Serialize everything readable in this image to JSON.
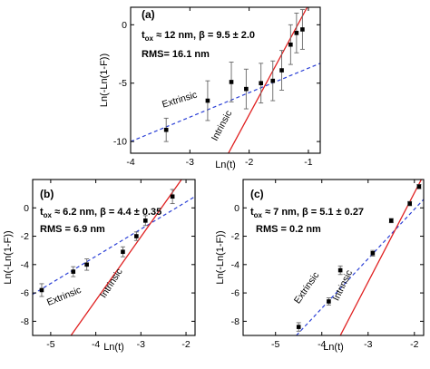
{
  "chart_data": [
    {
      "type": "scatter",
      "panel_label": "(a)",
      "info_line1_prefix": "t",
      "info_line1_sub": "ox",
      "info_line1_rest": " ≈ 12 nm, β = 9.5 ± 2.0",
      "info_line2": "RMS=  16.1 nm",
      "xlabel": "Ln(t)",
      "ylabel": "Ln(-Ln(1-F))",
      "xlim": [
        -4,
        -0.8
      ],
      "ylim": [
        -11,
        1.5
      ],
      "xticks": [
        "-4",
        "-3",
        "-2",
        "-1"
      ],
      "yticks": [
        "-10",
        "-5",
        "0"
      ],
      "xtick_values": [
        -4,
        -3,
        -2,
        -1
      ],
      "ytick_values": [
        -10,
        -5,
        0
      ],
      "points": [
        {
          "x": -3.4,
          "y": -9.0,
          "err": 1.0
        },
        {
          "x": -2.7,
          "y": -6.5,
          "err": 1.7
        },
        {
          "x": -2.3,
          "y": -4.9,
          "err": 1.7
        },
        {
          "x": -2.05,
          "y": -5.5,
          "err": 1.7
        },
        {
          "x": -1.8,
          "y": -5.0,
          "err": 1.7
        },
        {
          "x": -1.6,
          "y": -4.8,
          "err": 1.7
        },
        {
          "x": -1.45,
          "y": -3.9,
          "err": 1.7
        },
        {
          "x": -1.3,
          "y": -1.7,
          "err": 1.7
        },
        {
          "x": -1.2,
          "y": -0.7,
          "err": 1.7
        },
        {
          "x": -1.1,
          "y": -0.4,
          "err": 1.7
        }
      ],
      "intrinsic_fit": [
        [
          -2.35,
          -11
        ],
        [
          -1.02,
          1.5
        ]
      ],
      "extrinsic_fit": [
        [
          -4,
          -10.0
        ],
        [
          -0.8,
          -3.3
        ]
      ],
      "annotations": [
        {
          "text": "Extrinsic",
          "x": -3.45,
          "y": -7.1,
          "angle": -17
        },
        {
          "text": "Intrinsic",
          "x": -2.55,
          "y": -10.0,
          "angle": -62
        }
      ]
    },
    {
      "type": "scatter",
      "panel_label": "(b)",
      "info_line1_prefix": "t",
      "info_line1_sub": "ox",
      "info_line1_rest": " ≈ 6.2 nm, β = 4.4 ± 0.35",
      "info_line2": "RMS = 6.9 nm",
      "xlabel": "Ln(t)",
      "ylabel": "Ln(-Ln(1-F))",
      "xlim": [
        -5.4,
        -1.8
      ],
      "ylim": [
        -9,
        2
      ],
      "xticks": [
        "-5",
        "-4",
        "-3",
        "-2"
      ],
      "yticks": [
        "-8",
        "-6",
        "-4",
        "-2",
        "0"
      ],
      "xtick_values": [
        -5,
        -4,
        -3,
        -2
      ],
      "ytick_values": [
        -8,
        -6,
        -4,
        -2,
        0
      ],
      "points": [
        {
          "x": -5.2,
          "y": -5.8,
          "err": 0.45
        },
        {
          "x": -4.5,
          "y": -4.5,
          "err": 0.35
        },
        {
          "x": -4.2,
          "y": -4.0,
          "err": 0.4
        },
        {
          "x": -3.4,
          "y": -3.1,
          "err": 0.35
        },
        {
          "x": -3.1,
          "y": -2.0,
          "err": 0.3
        },
        {
          "x": -2.9,
          "y": -0.9,
          "err": 0.35
        },
        {
          "x": -2.3,
          "y": 0.8,
          "err": 0.5
        }
      ],
      "intrinsic_fit": [
        [
          -4.55,
          -9
        ],
        [
          -2.1,
          2
        ]
      ],
      "extrinsic_fit": [
        [
          -5.4,
          -6.1
        ],
        [
          -1.8,
          0.8
        ]
      ],
      "annotations": [
        {
          "text": "Extrinsic",
          "x": -5.05,
          "y": -6.9,
          "angle": -22
        },
        {
          "text": "Intrinsic",
          "x": -3.8,
          "y": -6.4,
          "angle": -57
        }
      ]
    },
    {
      "type": "scatter",
      "panel_label": "(c)",
      "info_line1_prefix": "t",
      "info_line1_sub": "ox",
      "info_line1_rest": " ≈ 7 nm, β = 5.1 ±  0.27",
      "info_line2": "RMS = 0.2 nm",
      "xlabel": "Ln(t)",
      "ylabel": "Ln(-Ln(1-F))",
      "xlim": [
        -5.7,
        -1.8
      ],
      "ylim": [
        -9,
        2
      ],
      "xticks": [
        "-5",
        "-4",
        "-3",
        "-2"
      ],
      "yticks": [
        "-8",
        "-6",
        "-4",
        "-2",
        "0"
      ],
      "xtick_values": [
        -5,
        -4,
        -3,
        -2
      ],
      "ytick_values": [
        -8,
        -6,
        -4,
        -2,
        0
      ],
      "points": [
        {
          "x": -4.5,
          "y": -8.4,
          "err": 0.3
        },
        {
          "x": -3.85,
          "y": -6.6,
          "err": 0.25
        },
        {
          "x": -3.6,
          "y": -4.4,
          "err": 0.3
        },
        {
          "x": -2.9,
          "y": -3.2,
          "err": 0.2
        },
        {
          "x": -2.5,
          "y": -0.9,
          "err": 0.15
        },
        {
          "x": -2.1,
          "y": 0.3,
          "err": 0.15
        },
        {
          "x": -1.9,
          "y": 1.5,
          "err": 0.15
        }
      ],
      "intrinsic_fit": [
        [
          -3.6,
          -9
        ],
        [
          -1.85,
          2
        ]
      ],
      "extrinsic_fit": [
        [
          -4.55,
          -9
        ],
        [
          -1.8,
          0.6
        ]
      ],
      "annotations": [
        {
          "text": "Extrinsic",
          "x": -4.5,
          "y": -6.8,
          "angle": -55
        },
        {
          "text": "Intrinsic",
          "x": -3.65,
          "y": -6.6,
          "angle": -64
        }
      ]
    }
  ]
}
